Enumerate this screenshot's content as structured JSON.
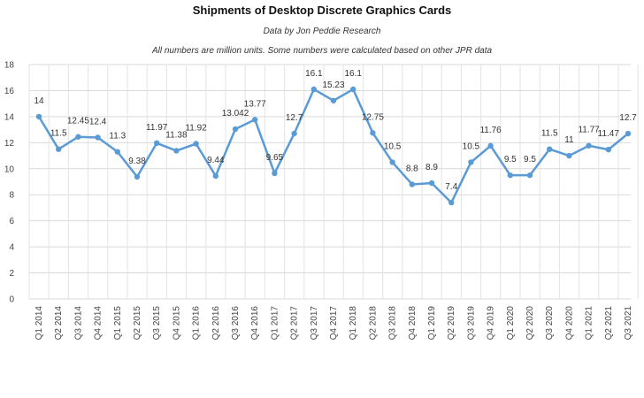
{
  "chart_data": {
    "type": "line",
    "title": "Shipments of Desktop Discrete Graphics Cards",
    "subtitle": "Data by Jon Peddie Research",
    "note": "All numbers are million units. Some numbers were calculated based on other JPR data",
    "ylim": [
      0,
      18
    ],
    "yticks": [
      0,
      2,
      4,
      6,
      8,
      10,
      12,
      14,
      16,
      18
    ],
    "grid": true,
    "line_color": "#5b9bd5",
    "categories": [
      "Q1 2014",
      "Q2 2014",
      "Q3 2014",
      "Q4 2014",
      "Q1 2015",
      "Q2 2015",
      "Q3 2015",
      "Q4 2015",
      "Q1 2016",
      "Q2 2016",
      "Q3 2016",
      "Q4 2016",
      "Q1 2017",
      "Q2 2017",
      "Q3 2017",
      "Q4 2017",
      "Q1 2018",
      "Q2 2018",
      "Q3 2018",
      "Q4 2018",
      "Q1 2019",
      "Q2 2019",
      "Q3 2019",
      "Q4 2019",
      "Q1 2020",
      "Q2 2020",
      "Q3 2020",
      "Q4 2020",
      "Q1 2021",
      "Q2 2021",
      "Q3 2021"
    ],
    "values": [
      14,
      11.5,
      12.45,
      12.4,
      11.3,
      9.38,
      11.97,
      11.38,
      11.92,
      9.44,
      13.042,
      13.77,
      9.65,
      12.7,
      16.1,
      15.23,
      16.1,
      12.75,
      10.5,
      8.8,
      8.9,
      7.4,
      10.5,
      11.76,
      9.5,
      9.5,
      11.5,
      11,
      11.77,
      11.47,
      12.7
    ],
    "labels": [
      "14",
      "11.5",
      "12.45",
      "12.4",
      "11.3",
      "9.38",
      "11.97",
      "11.38",
      "11.92",
      "9.44",
      "13.042",
      "13.77",
      "9.65",
      "12.7",
      "16.1",
      "15.23",
      "16.1",
      "12.75",
      "10.5",
      "8.8",
      "8.9",
      "7.4",
      "10.5",
      "11.76",
      "9.5",
      "9.5",
      "11.5",
      "11",
      "11.77",
      "11.47",
      "12.7"
    ]
  }
}
